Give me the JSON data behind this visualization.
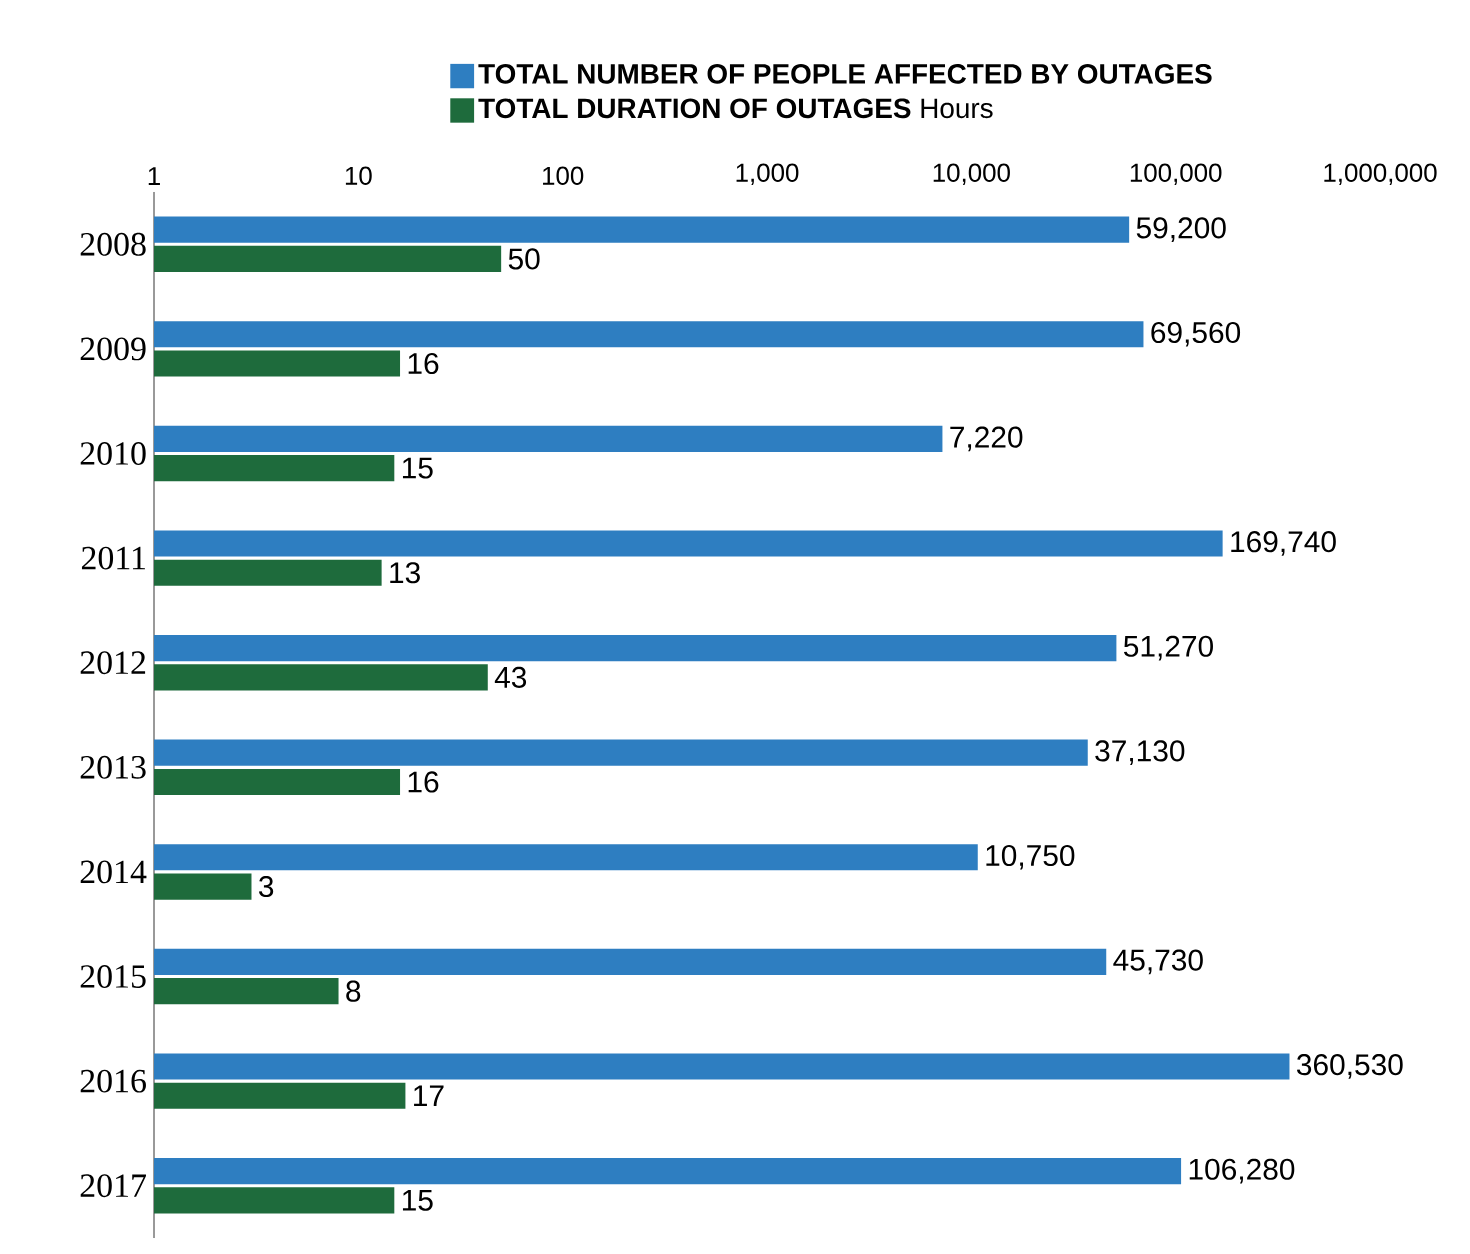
{
  "chart_data": {
    "type": "bar",
    "orientation": "horizontal",
    "log": "x",
    "legend": "top",
    "grid": false,
    "categories": [
      "2008",
      "2009",
      "2010",
      "2011",
      "2012",
      "2013",
      "2014",
      "2015",
      "2016",
      "2017"
    ],
    "series": [
      {
        "name": "**TOTAL NUMBER OF PEOPLE AFFECTED BY OUTAGES**",
        "color": "#2e7ec1",
        "values": [
          59200,
          69560,
          7220,
          169740,
          51270,
          37130,
          10750,
          45730,
          360530,
          106280
        ],
        "value_labels": [
          "59,200",
          "69,560",
          "7,220",
          "169,740",
          "51,270",
          "37,130",
          "10,750",
          "45,730",
          "360,530",
          "106,280"
        ]
      },
      {
        "name": "**TOTAL DURATION OF OUTAGES** Hours",
        "color": "#1e6b3c",
        "values": [
          50,
          16,
          15,
          13,
          43,
          16,
          3,
          8,
          17,
          15
        ],
        "value_labels": [
          "50",
          "16",
          "15",
          "13",
          "43",
          "16",
          "3",
          "8",
          "17",
          "15"
        ]
      }
    ],
    "xlim": [
      1,
      1000000
    ],
    "xticks": [
      1,
      10,
      100,
      {
        "value": 1000,
        "label": "1,000"
      },
      {
        "value": 10000,
        "label": "10,000"
      },
      {
        "value": 100000,
        "label": "100,000"
      },
      {
        "value": 1000000,
        "label": "1,000,000"
      }
    ]
  }
}
